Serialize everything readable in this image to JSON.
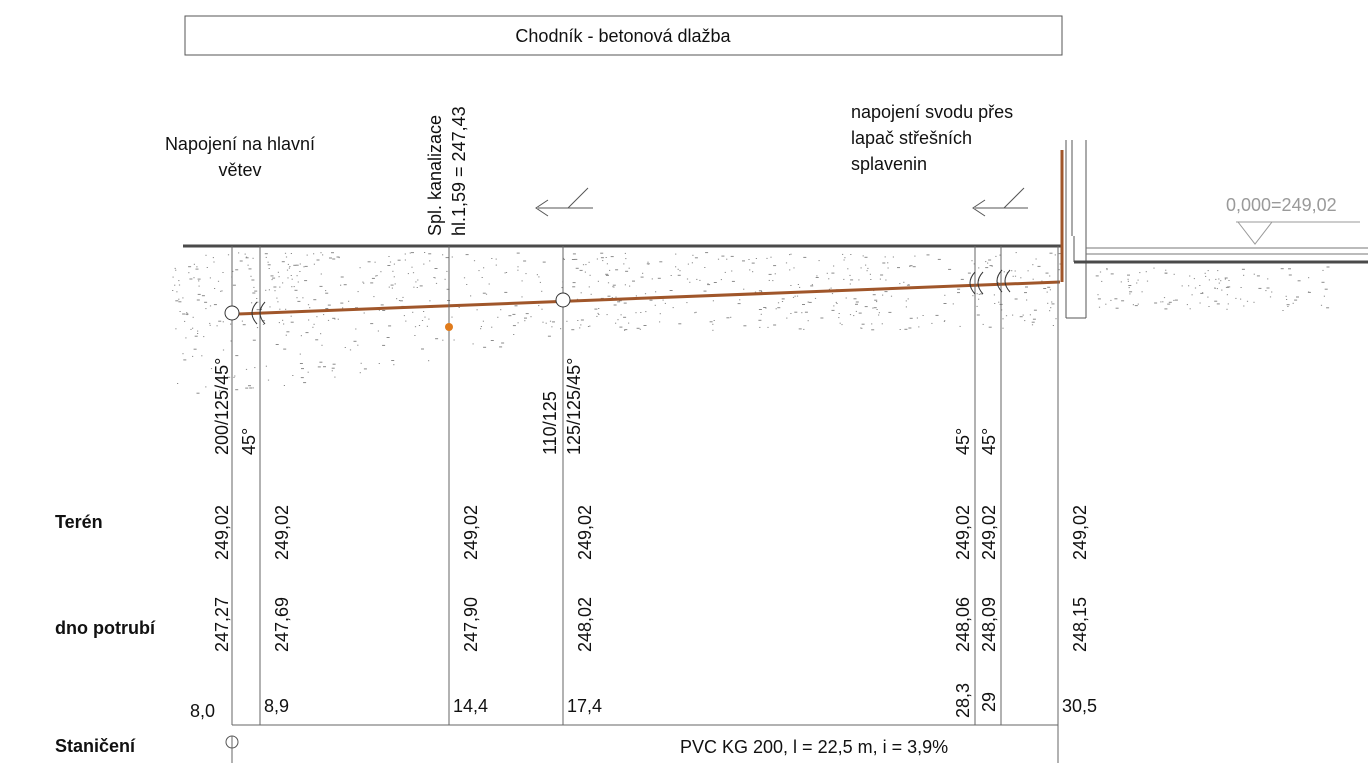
{
  "header": {
    "surface_label": "Chodník - betonová dlažba"
  },
  "notes": {
    "main_connection": [
      "Napojení na hlavní",
      "větev"
    ],
    "sewer": [
      "Spl. kanalizace",
      "hl.1,59 = 247,43"
    ],
    "downpipe": [
      "napojení svodu přes",
      "lapač střešních",
      "splavenin"
    ],
    "floor_level": "0,000=249,02"
  },
  "rows": {
    "terrain": "Terén",
    "pipe_bottom": "dno potrubí",
    "chainage": "Staničení"
  },
  "fittings": {
    "f1": "200/125/45°",
    "f2": "45°",
    "f3": [
      "110/125",
      "125/125/45°"
    ],
    "f4": "45°",
    "f5": "45°"
  },
  "stations": [
    {
      "chainage": "8,0",
      "terrain": "249,02",
      "bottom": "247,27"
    },
    {
      "chainage": "8,9",
      "terrain": "249,02",
      "bottom": "247,69"
    },
    {
      "chainage": "14,4",
      "terrain": "249,02",
      "bottom": "247,90"
    },
    {
      "chainage": "17,4",
      "terrain": "249,02",
      "bottom": "248,02"
    },
    {
      "chainage": "28,3",
      "terrain": "249,02",
      "bottom": "248,06"
    },
    {
      "chainage": "29",
      "terrain": "249,02",
      "bottom": "248,09"
    },
    {
      "chainage": "30,5",
      "terrain": "249,02",
      "bottom": "248,15"
    }
  ],
  "pipe_info": "PVC KG 200, l = 22,5 m, i = 3,9%",
  "colors": {
    "pipe": "#a0562a",
    "branch_dot": "#e07b1c",
    "line": "#555555",
    "dim_text": "#9a9a9a"
  }
}
